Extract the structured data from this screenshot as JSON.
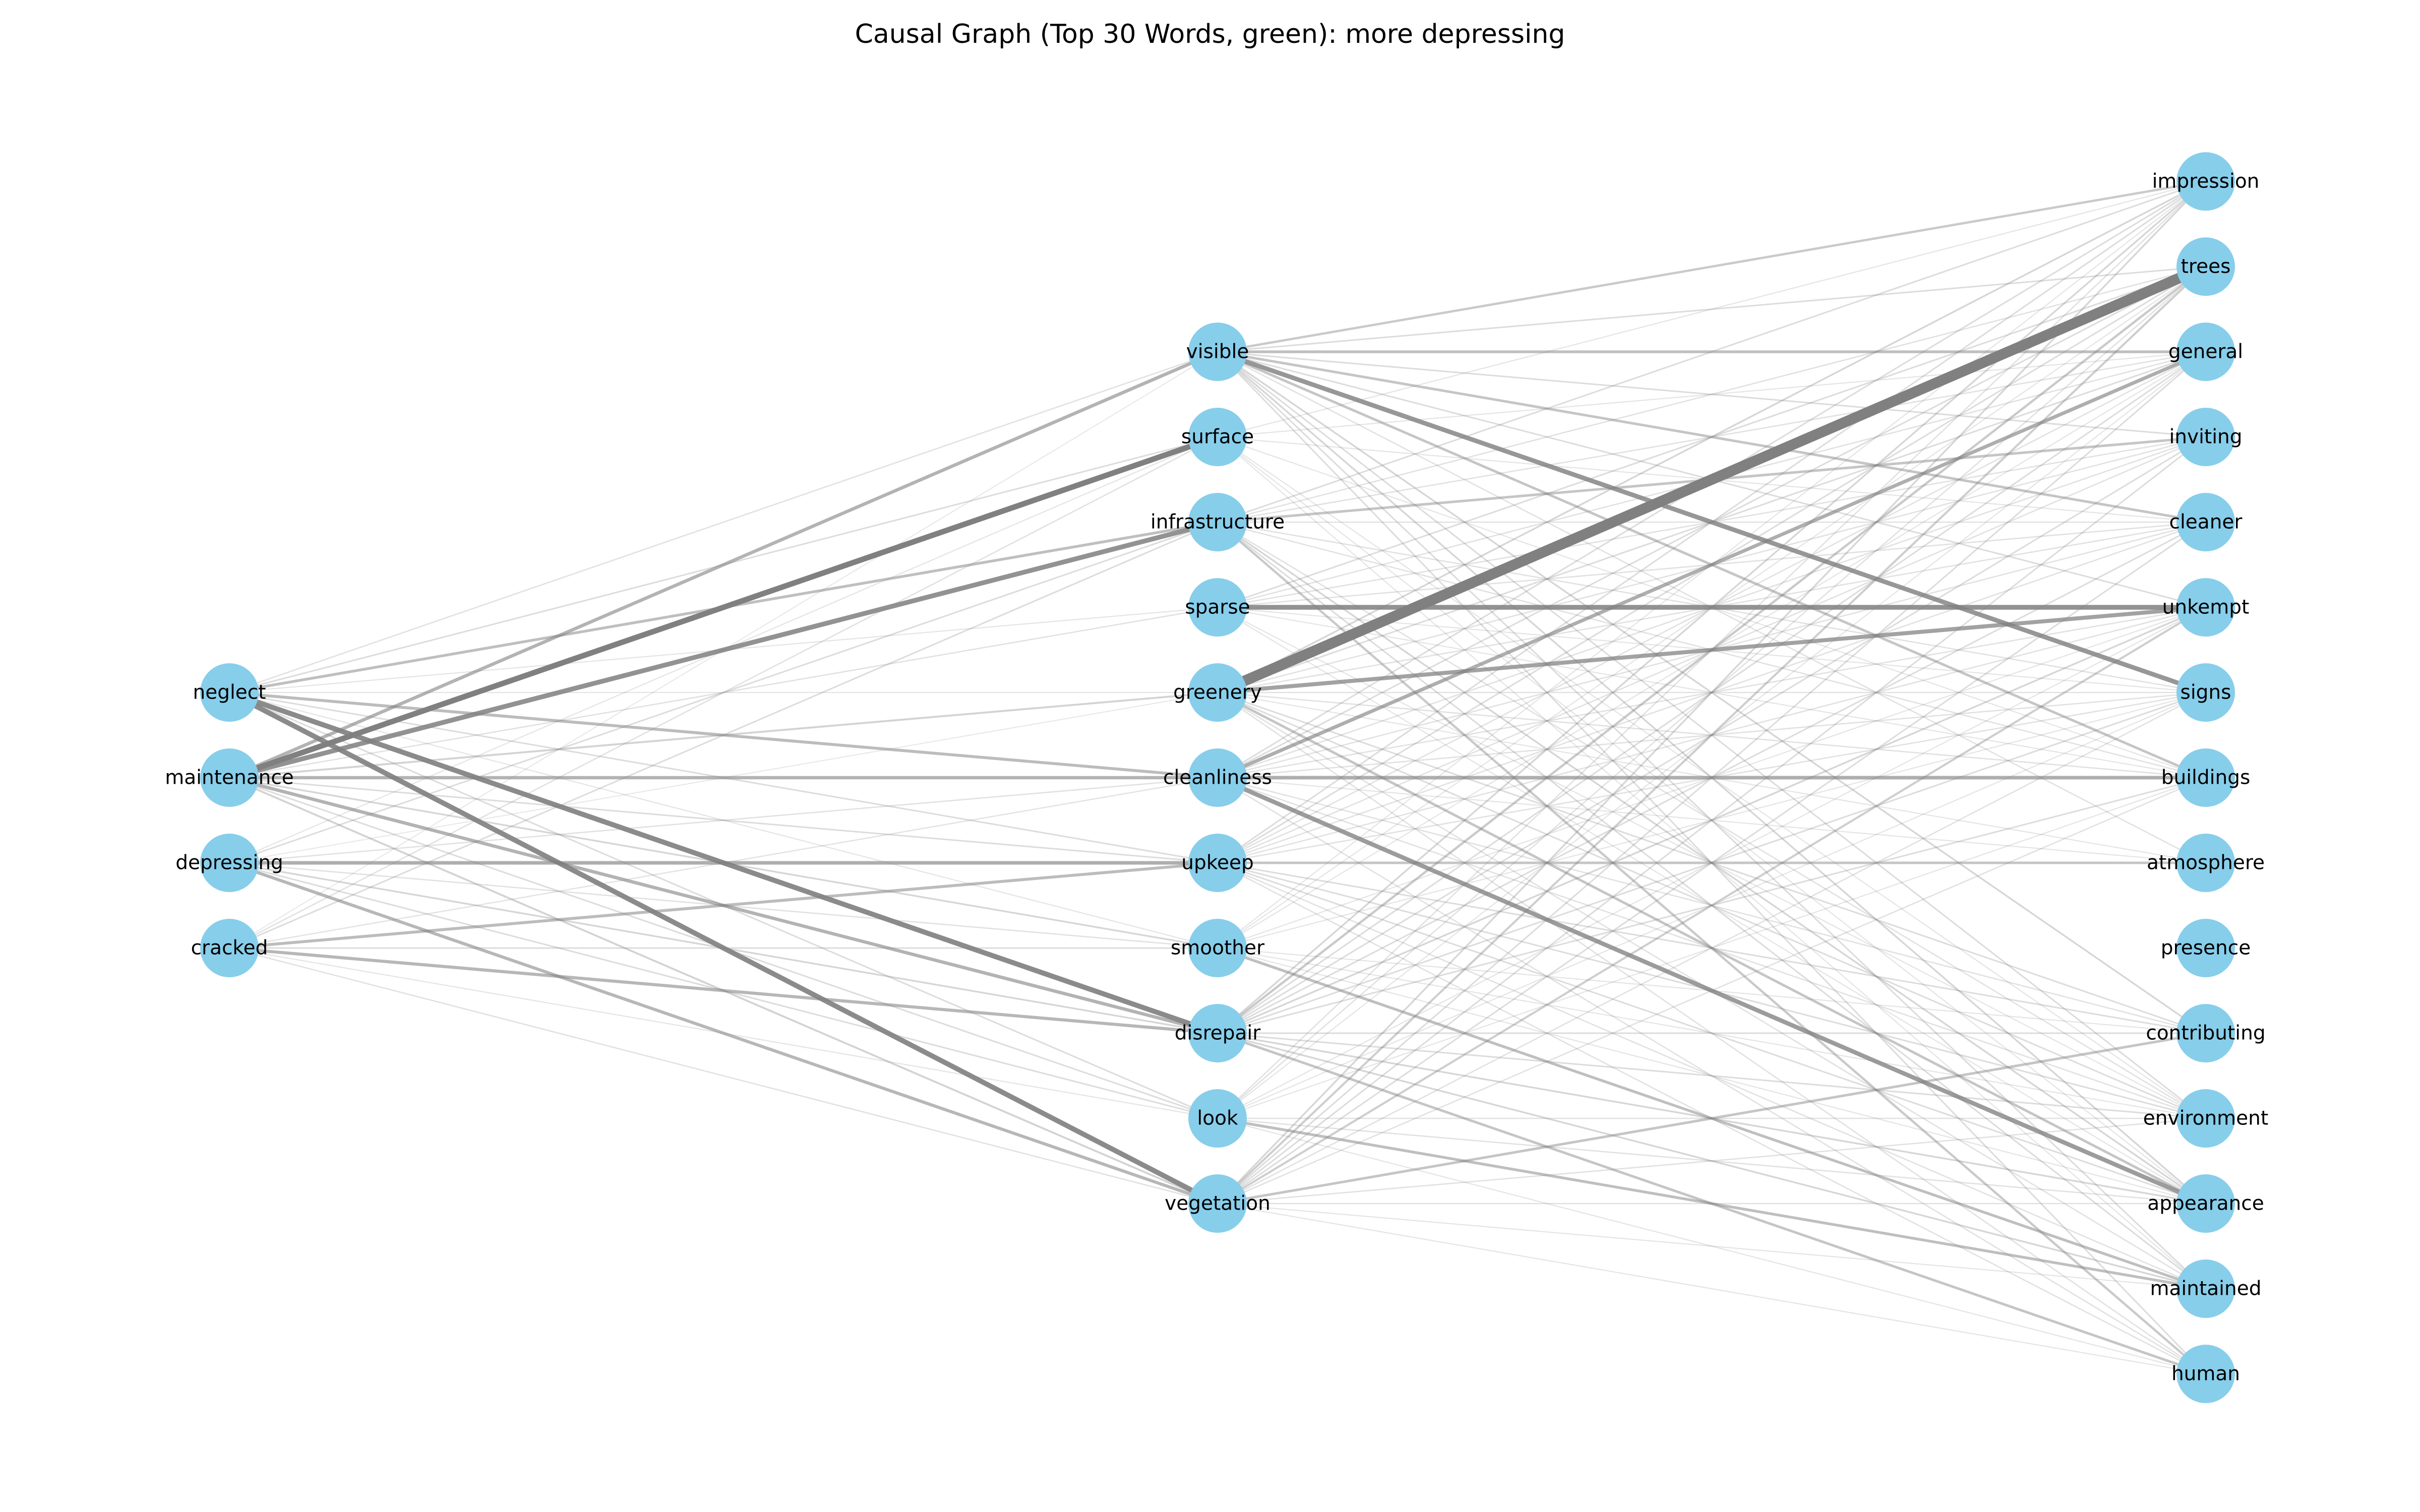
{
  "title": "Causal Graph (Top 30 Words, green): more depressing",
  "colors": {
    "node_fill": "#87CEEB",
    "edge": "#808080",
    "background": "#ffffff"
  },
  "nodes": {
    "left": [
      "neglect",
      "maintenance",
      "depressing",
      "cracked"
    ],
    "middle": [
      "visible",
      "surface",
      "infrastructure",
      "sparse",
      "greenery",
      "cleanliness",
      "upkeep",
      "smoother",
      "disrepair",
      "look",
      "vegetation"
    ],
    "right": [
      "impression",
      "trees",
      "general",
      "inviting",
      "cleaner",
      "unkempt",
      "signs",
      "buildings",
      "atmosphere",
      "presence",
      "contributing",
      "environment",
      "appearance",
      "maintained",
      "human"
    ]
  },
  "edges": [
    [
      "greenery",
      "trees",
      1.0
    ],
    [
      "maintenance",
      "surface",
      0.5
    ],
    [
      "neglect",
      "disrepair",
      0.45
    ],
    [
      "neglect",
      "vegetation",
      0.45
    ],
    [
      "maintenance",
      "infrastructure",
      0.42
    ],
    [
      "visible",
      "signs",
      0.4
    ],
    [
      "sparse",
      "unkempt",
      0.42
    ],
    [
      "greenery",
      "unkempt",
      0.35
    ],
    [
      "cleanliness",
      "appearance",
      0.38
    ],
    [
      "cleanliness",
      "general",
      0.3
    ],
    [
      "depressing",
      "upkeep",
      0.3
    ],
    [
      "maintenance",
      "visible",
      0.28
    ],
    [
      "maintenance",
      "cleanliness",
      0.28
    ],
    [
      "maintenance",
      "disrepair",
      0.28
    ],
    [
      "cracked",
      "disrepair",
      0.26
    ],
    [
      "cracked",
      "upkeep",
      0.24
    ],
    [
      "depressing",
      "vegetation",
      0.26
    ],
    [
      "neglect",
      "cleanliness",
      0.24
    ],
    [
      "neglect",
      "infrastructure",
      0.22
    ],
    [
      "cleanliness",
      "buildings",
      0.3
    ],
    [
      "visible",
      "general",
      0.22
    ],
    [
      "upkeep",
      "atmosphere",
      0.2
    ],
    [
      "look",
      "maintained",
      0.22
    ],
    [
      "smoother",
      "maintained",
      0.22
    ],
    [
      "disrepair",
      "human",
      0.2
    ],
    [
      "vegetation",
      "contributing",
      0.2
    ],
    [
      "infrastructure",
      "inviting",
      0.2
    ],
    [
      "visible",
      "cleaner",
      0.2
    ],
    [
      "visible",
      "impression",
      0.18
    ],
    [
      "visible",
      "buildings",
      0.2
    ],
    [
      "infrastructure",
      "human",
      0.18
    ],
    [
      "greenery",
      "appearance",
      0.2
    ],
    [
      "disrepair",
      "trees",
      0.18
    ],
    [
      "vegetation",
      "unkempt",
      0.16
    ],
    [
      "vegetation",
      "trees",
      0.16
    ],
    [
      "maintenance",
      "greenery",
      0.14
    ],
    [
      "maintenance",
      "vegetation",
      0.14
    ],
    [
      "maintenance",
      "smoother",
      0.12
    ],
    [
      "neglect",
      "surface",
      0.1
    ],
    [
      "neglect",
      "visible",
      0.08
    ],
    [
      "neglect",
      "upkeep",
      0.1
    ],
    [
      "neglect",
      "look",
      0.1
    ],
    [
      "neglect",
      "sparse",
      0.06
    ],
    [
      "neglect",
      "greenery",
      0.06
    ],
    [
      "neglect",
      "smoother",
      0.06
    ],
    [
      "depressing",
      "infrastructure",
      0.1
    ],
    [
      "depressing",
      "disrepair",
      0.12
    ],
    [
      "depressing",
      "look",
      0.1
    ],
    [
      "depressing",
      "smoother",
      0.08
    ],
    [
      "depressing",
      "cleanliness",
      0.08
    ],
    [
      "depressing",
      "surface",
      0.06
    ],
    [
      "depressing",
      "greenery",
      0.05
    ],
    [
      "cracked",
      "vegetation",
      0.08
    ],
    [
      "cracked",
      "smoother",
      0.1
    ],
    [
      "cracked",
      "infrastructure",
      0.1
    ],
    [
      "cracked",
      "surface",
      0.08
    ],
    [
      "cracked",
      "cleanliness",
      0.07
    ],
    [
      "cracked",
      "look",
      0.06
    ],
    [
      "cracked",
      "visible",
      0.05
    ],
    [
      "maintenance",
      "sparse",
      0.08
    ],
    [
      "maintenance",
      "upkeep",
      0.1
    ],
    [
      "maintenance",
      "look",
      0.1
    ],
    [
      "visible",
      "trees",
      0.1
    ],
    [
      "visible",
      "inviting",
      0.1
    ],
    [
      "visible",
      "unkempt",
      0.1
    ],
    [
      "visible",
      "contributing",
      0.12
    ],
    [
      "visible",
      "environment",
      0.1
    ],
    [
      "visible",
      "appearance",
      0.12
    ],
    [
      "visible",
      "maintained",
      0.1
    ],
    [
      "visible",
      "human",
      0.1
    ],
    [
      "visible",
      "atmosphere",
      0.08
    ],
    [
      "surface",
      "impression",
      0.06
    ],
    [
      "surface",
      "general",
      0.06
    ],
    [
      "surface",
      "cleaner",
      0.06
    ],
    [
      "surface",
      "buildings",
      0.06
    ],
    [
      "surface",
      "environment",
      0.06
    ],
    [
      "surface",
      "appearance",
      0.06
    ],
    [
      "surface",
      "maintained",
      0.06
    ],
    [
      "infrastructure",
      "impression",
      0.1
    ],
    [
      "infrastructure",
      "trees",
      0.08
    ],
    [
      "infrastructure",
      "general",
      0.08
    ],
    [
      "infrastructure",
      "cleaner",
      0.08
    ],
    [
      "infrastructure",
      "signs",
      0.08
    ],
    [
      "infrastructure",
      "buildings",
      0.08
    ],
    [
      "infrastructure",
      "appearance",
      0.12
    ],
    [
      "infrastructure",
      "maintained",
      0.1
    ],
    [
      "infrastructure",
      "environment",
      0.08
    ],
    [
      "sparse",
      "trees",
      0.1
    ],
    [
      "sparse",
      "general",
      0.08
    ],
    [
      "sparse",
      "inviting",
      0.08
    ],
    [
      "sparse",
      "cleaner",
      0.08
    ],
    [
      "sparse",
      "signs",
      0.06
    ],
    [
      "sparse",
      "buildings",
      0.06
    ],
    [
      "sparse",
      "appearance",
      0.06
    ],
    [
      "sparse",
      "environment",
      0.06
    ],
    [
      "greenery",
      "impression",
      0.12
    ],
    [
      "greenery",
      "general",
      0.1
    ],
    [
      "greenery",
      "inviting",
      0.08
    ],
    [
      "greenery",
      "cleaner",
      0.08
    ],
    [
      "greenery",
      "signs",
      0.08
    ],
    [
      "greenery",
      "buildings",
      0.08
    ],
    [
      "greenery",
      "contributing",
      0.1
    ],
    [
      "greenery",
      "environment",
      0.1
    ],
    [
      "greenery",
      "maintained",
      0.08
    ],
    [
      "greenery",
      "human",
      0.08
    ],
    [
      "greenery",
      "atmosphere",
      0.06
    ],
    [
      "cleanliness",
      "impression",
      0.1
    ],
    [
      "cleanliness",
      "trees",
      0.1
    ],
    [
      "cleanliness",
      "inviting",
      0.08
    ],
    [
      "cleanliness",
      "cleaner",
      0.08
    ],
    [
      "cleanliness",
      "unkempt",
      0.08
    ],
    [
      "cleanliness",
      "signs",
      0.08
    ],
    [
      "cleanliness",
      "atmosphere",
      0.06
    ],
    [
      "cleanliness",
      "contributing",
      0.08
    ],
    [
      "cleanliness",
      "environment",
      0.08
    ],
    [
      "cleanliness",
      "human",
      0.08
    ],
    [
      "upkeep",
      "impression",
      0.1
    ],
    [
      "upkeep",
      "trees",
      0.1
    ],
    [
      "upkeep",
      "general",
      0.08
    ],
    [
      "upkeep",
      "inviting",
      0.08
    ],
    [
      "upkeep",
      "cleaner",
      0.08
    ],
    [
      "upkeep",
      "unkempt",
      0.08
    ],
    [
      "upkeep",
      "signs",
      0.08
    ],
    [
      "upkeep",
      "contributing",
      0.1
    ],
    [
      "upkeep",
      "environment",
      0.1
    ],
    [
      "upkeep",
      "appearance",
      0.1
    ],
    [
      "upkeep",
      "maintained",
      0.08
    ],
    [
      "upkeep",
      "human",
      0.08
    ],
    [
      "smoother",
      "impression",
      0.06
    ],
    [
      "smoother",
      "trees",
      0.06
    ],
    [
      "smoother",
      "general",
      0.06
    ],
    [
      "smoother",
      "unkempt",
      0.06
    ],
    [
      "smoother",
      "signs",
      0.06
    ],
    [
      "smoother",
      "contributing",
      0.06
    ],
    [
      "smoother",
      "environment",
      0.06
    ],
    [
      "smoother",
      "appearance",
      0.06
    ],
    [
      "disrepair",
      "impression",
      0.12
    ],
    [
      "disrepair",
      "general",
      0.1
    ],
    [
      "disrepair",
      "inviting",
      0.1
    ],
    [
      "disrepair",
      "cleaner",
      0.1
    ],
    [
      "disrepair",
      "unkempt",
      0.12
    ],
    [
      "disrepair",
      "signs",
      0.1
    ],
    [
      "disrepair",
      "buildings",
      0.1
    ],
    [
      "disrepair",
      "contributing",
      0.1
    ],
    [
      "disrepair",
      "environment",
      0.1
    ],
    [
      "disrepair",
      "appearance",
      0.12
    ],
    [
      "disrepair",
      "maintained",
      0.12
    ],
    [
      "look",
      "impression",
      0.08
    ],
    [
      "look",
      "trees",
      0.08
    ],
    [
      "look",
      "general",
      0.06
    ],
    [
      "look",
      "unkempt",
      0.06
    ],
    [
      "look",
      "signs",
      0.06
    ],
    [
      "look",
      "buildings",
      0.06
    ],
    [
      "look",
      "environment",
      0.08
    ],
    [
      "look",
      "appearance",
      0.08
    ],
    [
      "look",
      "human",
      0.06
    ],
    [
      "vegetation",
      "impression",
      0.12
    ],
    [
      "vegetation",
      "general",
      0.1
    ],
    [
      "vegetation",
      "inviting",
      0.1
    ],
    [
      "vegetation",
      "cleaner",
      0.1
    ],
    [
      "vegetation",
      "signs",
      0.08
    ],
    [
      "vegetation",
      "buildings",
      0.08
    ],
    [
      "vegetation",
      "environment",
      0.08
    ],
    [
      "vegetation",
      "appearance",
      0.08
    ],
    [
      "vegetation",
      "maintained",
      0.06
    ],
    [
      "vegetation",
      "human",
      0.06
    ]
  ]
}
